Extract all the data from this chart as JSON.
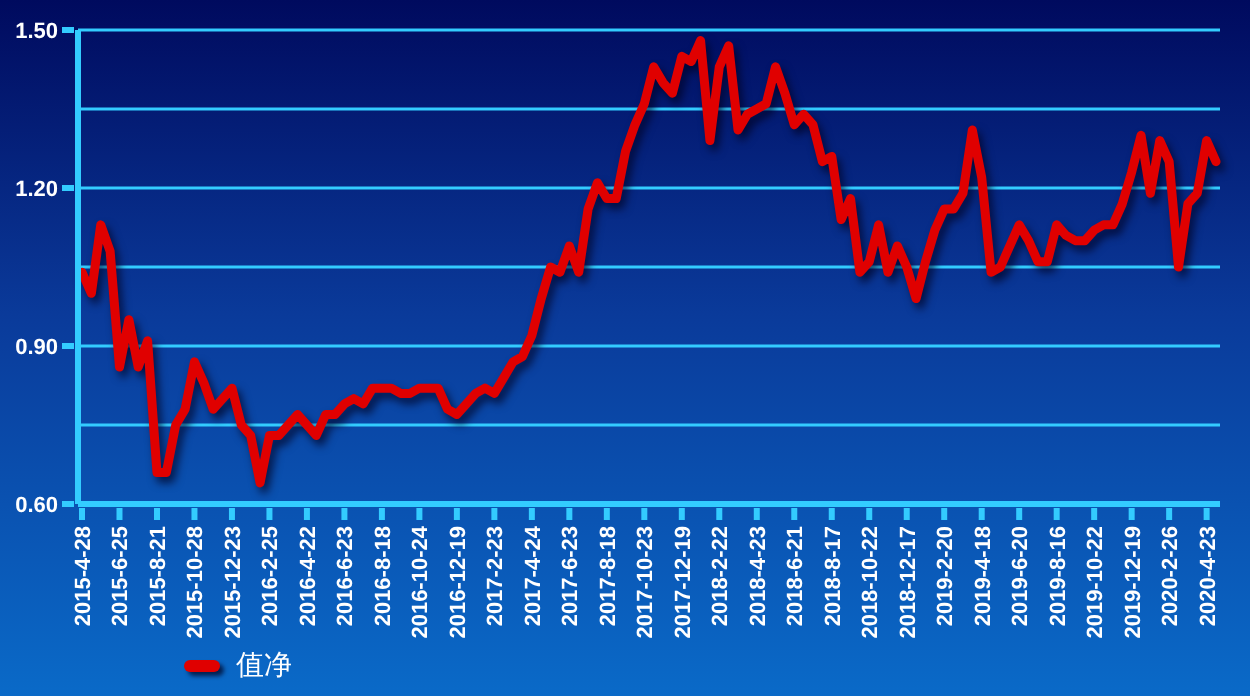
{
  "chart_data": {
    "type": "line",
    "categories": [
      "2015-4-28",
      null,
      null,
      null,
      "2015-6-25",
      null,
      null,
      null,
      "2015-8-21",
      null,
      null,
      null,
      "2015-10-28",
      null,
      null,
      null,
      "2015-12-23",
      null,
      null,
      null,
      "2016-2-25",
      null,
      null,
      null,
      "2016-4-22",
      null,
      null,
      null,
      "2016-6-23",
      null,
      null,
      null,
      "2016-8-18",
      null,
      null,
      null,
      "2016-10-24",
      null,
      null,
      null,
      "2016-12-19",
      null,
      null,
      null,
      "2017-2-23",
      null,
      null,
      null,
      "2017-4-24",
      null,
      null,
      null,
      "2017-6-23",
      null,
      null,
      null,
      "2017-8-18",
      null,
      null,
      null,
      "2017-10-23",
      null,
      null,
      null,
      "2017-12-19",
      null,
      null,
      null,
      "2018-2-22",
      null,
      null,
      null,
      "2018-4-23",
      null,
      null,
      null,
      "2018-6-21",
      null,
      null,
      null,
      "2018-8-17",
      null,
      null,
      null,
      "2018-10-22",
      null,
      null,
      null,
      "2018-12-17",
      null,
      null,
      null,
      "2019-2-20",
      null,
      null,
      null,
      "2019-4-18",
      null,
      null,
      null,
      "2019-6-20",
      null,
      null,
      null,
      "2019-8-16",
      null,
      null,
      null,
      "2019-10-22",
      null,
      null,
      null,
      "2019-12-19",
      null,
      null,
      null,
      "2020-2-26",
      null,
      null,
      null,
      "2020-4-23",
      null
    ],
    "series": [
      {
        "name": "值净",
        "color": "#e00000",
        "values": [
          1.04,
          1.0,
          1.13,
          1.08,
          0.86,
          0.95,
          0.86,
          0.91,
          0.66,
          0.66,
          0.75,
          0.78,
          0.87,
          0.83,
          0.78,
          0.8,
          0.82,
          0.75,
          0.73,
          0.64,
          0.73,
          0.73,
          0.75,
          0.77,
          0.75,
          0.73,
          0.77,
          0.77,
          0.79,
          0.8,
          0.79,
          0.82,
          0.82,
          0.82,
          0.81,
          0.81,
          0.82,
          0.82,
          0.82,
          0.78,
          0.77,
          0.79,
          0.81,
          0.82,
          0.81,
          0.84,
          0.87,
          0.88,
          0.92,
          0.99,
          1.05,
          1.04,
          1.09,
          1.04,
          1.16,
          1.21,
          1.18,
          1.18,
          1.27,
          1.32,
          1.36,
          1.43,
          1.4,
          1.38,
          1.45,
          1.44,
          1.48,
          1.29,
          1.43,
          1.47,
          1.31,
          1.34,
          1.35,
          1.36,
          1.43,
          1.38,
          1.32,
          1.34,
          1.32,
          1.25,
          1.26,
          1.14,
          1.18,
          1.04,
          1.06,
          1.13,
          1.04,
          1.09,
          1.05,
          0.99,
          1.06,
          1.12,
          1.16,
          1.16,
          1.19,
          1.31,
          1.22,
          1.04,
          1.05,
          1.09,
          1.13,
          1.1,
          1.06,
          1.06,
          1.13,
          1.11,
          1.1,
          1.1,
          1.12,
          1.13,
          1.13,
          1.17,
          1.23,
          1.3,
          1.19,
          1.29,
          1.25,
          1.05,
          1.17,
          1.19,
          1.29,
          1.25
        ]
      }
    ],
    "ylim": [
      0.6,
      1.5
    ],
    "yticks": [
      {
        "value": 0.6,
        "label": "0.60"
      },
      {
        "value": 0.75,
        "label": null
      },
      {
        "value": 0.9,
        "label": "0.90"
      },
      {
        "value": 1.05,
        "label": null
      },
      {
        "value": 1.2,
        "label": "1.20"
      },
      {
        "value": 1.35,
        "label": null
      },
      {
        "value": 1.5,
        "label": "1.50"
      }
    ],
    "grid": "y",
    "legend": "bottom left",
    "marker": "none",
    "line_style": "solid"
  }
}
